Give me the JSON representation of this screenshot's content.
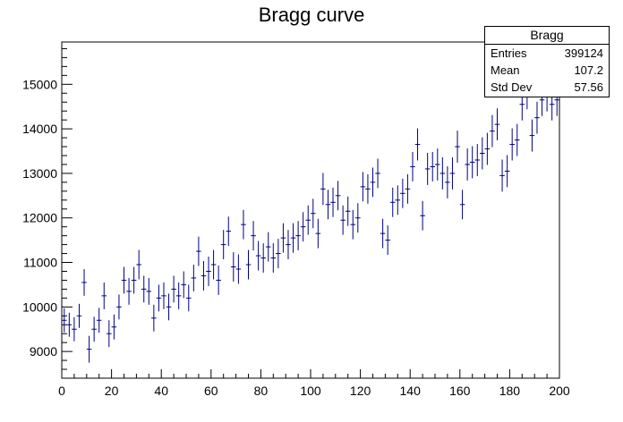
{
  "chart_data": {
    "type": "scatter",
    "title": "Bragg curve",
    "xlabel": "",
    "ylabel": "",
    "xlim": [
      0,
      200
    ],
    "ylim": [
      8400,
      15950
    ],
    "x_ticks": [
      0,
      20,
      40,
      60,
      80,
      100,
      120,
      140,
      160,
      180,
      200
    ],
    "y_ticks": [
      9000,
      10000,
      11000,
      12000,
      13000,
      14000,
      15000
    ],
    "bin_width": 2,
    "series": [
      {
        "color": "#000080",
        "x": [
          1,
          3,
          5,
          7,
          9,
          11,
          13,
          15,
          17,
          19,
          21,
          23,
          25,
          27,
          29,
          31,
          33,
          35,
          37,
          39,
          41,
          43,
          45,
          47,
          49,
          51,
          53,
          55,
          57,
          59,
          61,
          63,
          65,
          67,
          69,
          71,
          73,
          75,
          77,
          79,
          81,
          83,
          85,
          87,
          89,
          91,
          93,
          95,
          97,
          99,
          101,
          103,
          105,
          107,
          109,
          111,
          113,
          115,
          117,
          119,
          121,
          123,
          125,
          127,
          129,
          131,
          133,
          135,
          137,
          139,
          141,
          143,
          145,
          147,
          149,
          151,
          153,
          155,
          157,
          159,
          161,
          163,
          165,
          167,
          169,
          171,
          173,
          175,
          177,
          179,
          181,
          183,
          185,
          187,
          189,
          191,
          193,
          195,
          197,
          199
        ],
        "values": [
          9700,
          9600,
          9500,
          9800,
          10550,
          9050,
          9500,
          9700,
          10250,
          9400,
          9550,
          10000,
          10600,
          10350,
          10600,
          10950,
          10400,
          10350,
          9750,
          10200,
          10250,
          10000,
          10400,
          10250,
          10500,
          10200,
          10650,
          11250,
          10700,
          10800,
          10950,
          10600,
          11400,
          11700,
          10900,
          10850,
          11850,
          10950,
          11600,
          11150,
          11100,
          11350,
          11100,
          11200,
          11550,
          11400,
          11550,
          11600,
          11800,
          11950,
          12100,
          11650,
          12650,
          12300,
          12350,
          12500,
          11950,
          12150,
          11850,
          12000,
          12700,
          12650,
          12800,
          13000,
          11650,
          11500,
          12350,
          12400,
          12550,
          12650,
          13150,
          13650,
          12050,
          13100,
          13150,
          13200,
          13000,
          12800,
          13000,
          13600,
          12300,
          13200,
          13250,
          13300,
          13450,
          13550,
          13950,
          14100,
          12950,
          13050,
          13650,
          13750,
          14550,
          14800,
          13850,
          14250,
          14650,
          14750,
          14550,
          14650
        ],
        "errors": [
          270,
          270,
          270,
          270,
          300,
          300,
          280,
          280,
          300,
          300,
          280,
          280,
          300,
          300,
          300,
          330,
          300,
          300,
          300,
          300,
          300,
          300,
          300,
          300,
          300,
          300,
          300,
          330,
          330,
          330,
          330,
          330,
          330,
          330,
          330,
          330,
          330,
          330,
          330,
          330,
          330,
          330,
          330,
          330,
          330,
          330,
          330,
          330,
          330,
          330,
          330,
          330,
          360,
          330,
          330,
          330,
          330,
          330,
          330,
          330,
          330,
          330,
          330,
          330,
          330,
          330,
          330,
          330,
          330,
          330,
          330,
          360,
          330,
          360,
          330,
          360,
          360,
          360,
          360,
          360,
          330,
          360,
          360,
          360,
          360,
          360,
          360,
          360,
          360,
          360,
          360,
          360,
          360,
          360,
          360,
          360,
          360,
          360,
          360,
          360
        ]
      }
    ]
  },
  "stats": {
    "title": "Bragg",
    "rows": [
      {
        "label": "Entries",
        "value": "399124"
      },
      {
        "label": "Mean",
        "value": "107.2"
      },
      {
        "label": "Std Dev",
        "value": "57.56"
      }
    ]
  }
}
